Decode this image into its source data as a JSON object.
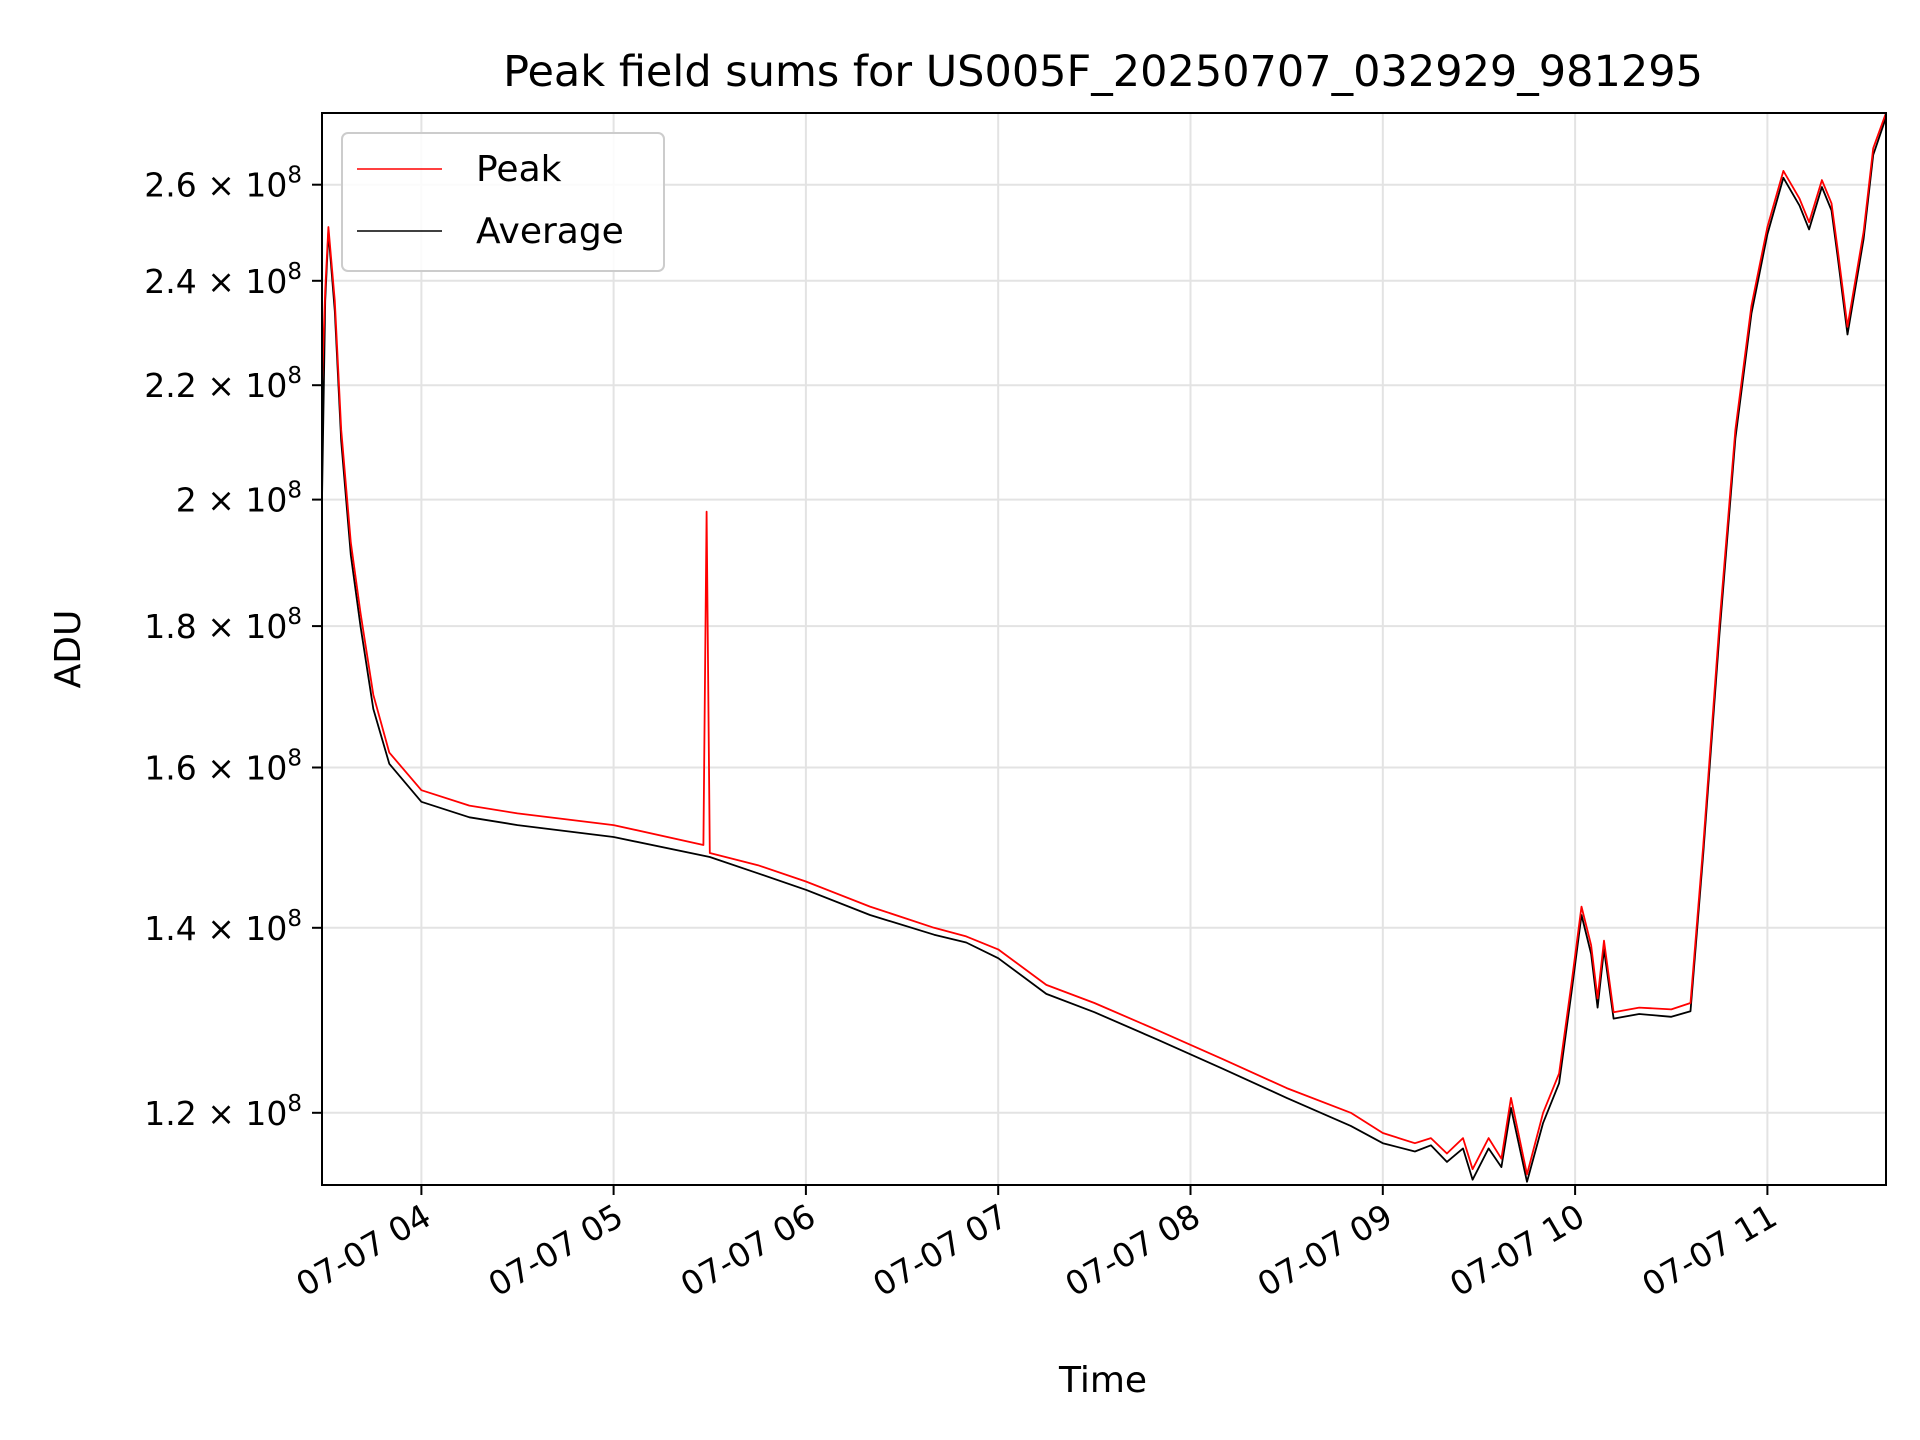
{
  "chart_data": {
    "type": "line",
    "title": "Peak field sums for US005F_20250707_032929_981295",
    "xlabel": "Time",
    "ylabel": "ADU",
    "y_scale": "log",
    "grid": true,
    "legend_position": "top-left",
    "xlim": [
      "2025-07-07 03:29",
      "2025-07-07 11:37"
    ],
    "ylim": [
      113000000,
      276000000
    ],
    "x_ticks": [
      {
        "value": "2025-07-07 04:00",
        "label": "07-07 04"
      },
      {
        "value": "2025-07-07 05:00",
        "label": "07-07 05"
      },
      {
        "value": "2025-07-07 06:00",
        "label": "07-07 06"
      },
      {
        "value": "2025-07-07 07:00",
        "label": "07-07 07"
      },
      {
        "value": "2025-07-07 08:00",
        "label": "07-07 08"
      },
      {
        "value": "2025-07-07 09:00",
        "label": "07-07 09"
      },
      {
        "value": "2025-07-07 10:00",
        "label": "07-07 10"
      },
      {
        "value": "2025-07-07 11:00",
        "label": "07-07 11"
      }
    ],
    "y_ticks": [
      {
        "value": 120000000,
        "mantissa": "1.2",
        "base": "10",
        "exp": "8"
      },
      {
        "value": 140000000,
        "mantissa": "1.4",
        "base": "10",
        "exp": "8"
      },
      {
        "value": 160000000,
        "mantissa": "1.6",
        "base": "10",
        "exp": "8"
      },
      {
        "value": 180000000,
        "mantissa": "1.8",
        "base": "10",
        "exp": "8"
      },
      {
        "value": 200000000,
        "mantissa": "2",
        "base": "10",
        "exp": "8"
      },
      {
        "value": 220000000,
        "mantissa": "2.2",
        "base": "10",
        "exp": "8"
      },
      {
        "value": 240000000,
        "mantissa": "2.4",
        "base": "10",
        "exp": "8"
      },
      {
        "value": 260000000,
        "mantissa": "2.6",
        "base": "10",
        "exp": "8"
      }
    ],
    "series": [
      {
        "name": "Peak",
        "color": "#ff0000",
        "x": [
          "2025-07-07 03:29",
          "2025-07-07 03:30",
          "2025-07-07 03:31",
          "2025-07-07 03:33",
          "2025-07-07 03:35",
          "2025-07-07 03:38",
          "2025-07-07 03:41",
          "2025-07-07 03:45",
          "2025-07-07 03:50",
          "2025-07-07 04:00",
          "2025-07-07 04:15",
          "2025-07-07 04:30",
          "2025-07-07 05:00",
          "2025-07-07 05:28",
          "2025-07-07 05:29",
          "2025-07-07 05:30",
          "2025-07-07 05:45",
          "2025-07-07 06:00",
          "2025-07-07 06:20",
          "2025-07-07 06:40",
          "2025-07-07 06:50",
          "2025-07-07 07:00",
          "2025-07-07 07:15",
          "2025-07-07 07:30",
          "2025-07-07 07:50",
          "2025-07-07 08:10",
          "2025-07-07 08:30",
          "2025-07-07 08:50",
          "2025-07-07 09:00",
          "2025-07-07 09:10",
          "2025-07-07 09:15",
          "2025-07-07 09:20",
          "2025-07-07 09:25",
          "2025-07-07 09:28",
          "2025-07-07 09:33",
          "2025-07-07 09:37",
          "2025-07-07 09:40",
          "2025-07-07 09:45",
          "2025-07-07 09:50",
          "2025-07-07 09:55",
          "2025-07-07 09:59",
          "2025-07-07 10:02",
          "2025-07-07 10:05",
          "2025-07-07 10:07",
          "2025-07-07 10:09",
          "2025-07-07 10:12",
          "2025-07-07 10:20",
          "2025-07-07 10:30",
          "2025-07-07 10:36",
          "2025-07-07 10:40",
          "2025-07-07 10:45",
          "2025-07-07 10:50",
          "2025-07-07 10:55",
          "2025-07-07 11:00",
          "2025-07-07 11:05",
          "2025-07-07 11:10",
          "2025-07-07 11:13",
          "2025-07-07 11:17",
          "2025-07-07 11:20",
          "2025-07-07 11:22",
          "2025-07-07 11:25",
          "2025-07-07 11:30",
          "2025-07-07 11:33",
          "2025-07-07 11:37"
        ],
        "values": [
          220000000,
          238000000,
          251000000,
          236000000,
          212000000,
          193000000,
          182000000,
          170000000,
          162000000,
          157000000,
          155000000,
          154000000,
          152500000,
          150000000,
          198000000,
          149000000,
          147500000,
          145500000,
          142500000,
          140000000,
          139000000,
          137500000,
          133500000,
          131500000,
          128500000,
          125500000,
          122500000,
          120000000,
          118000000,
          117000000,
          117500000,
          116000000,
          117500000,
          114500000,
          117500000,
          115500000,
          121500000,
          114000000,
          120000000,
          124000000,
          134000000,
          142500000,
          138000000,
          132000000,
          138500000,
          130500000,
          131000000,
          130800000,
          131500000,
          150000000,
          180000000,
          212000000,
          235000000,
          251000000,
          263000000,
          257000000,
          252000000,
          261000000,
          256000000,
          246000000,
          231000000,
          250000000,
          268000000,
          276000000
        ]
      },
      {
        "name": "Average",
        "color": "#000000",
        "x": [
          "2025-07-07 03:29",
          "2025-07-07 03:30",
          "2025-07-07 03:31",
          "2025-07-07 03:33",
          "2025-07-07 03:35",
          "2025-07-07 03:38",
          "2025-07-07 03:41",
          "2025-07-07 03:45",
          "2025-07-07 03:50",
          "2025-07-07 04:00",
          "2025-07-07 04:15",
          "2025-07-07 04:30",
          "2025-07-07 05:00",
          "2025-07-07 05:30",
          "2025-07-07 05:45",
          "2025-07-07 06:00",
          "2025-07-07 06:20",
          "2025-07-07 06:40",
          "2025-07-07 06:50",
          "2025-07-07 07:00",
          "2025-07-07 07:15",
          "2025-07-07 07:30",
          "2025-07-07 07:50",
          "2025-07-07 08:10",
          "2025-07-07 08:30",
          "2025-07-07 08:50",
          "2025-07-07 09:00",
          "2025-07-07 09:10",
          "2025-07-07 09:15",
          "2025-07-07 09:20",
          "2025-07-07 09:25",
          "2025-07-07 09:28",
          "2025-07-07 09:33",
          "2025-07-07 09:37",
          "2025-07-07 09:40",
          "2025-07-07 09:45",
          "2025-07-07 09:50",
          "2025-07-07 09:55",
          "2025-07-07 09:59",
          "2025-07-07 10:02",
          "2025-07-07 10:05",
          "2025-07-07 10:07",
          "2025-07-07 10:09",
          "2025-07-07 10:12",
          "2025-07-07 10:20",
          "2025-07-07 10:30",
          "2025-07-07 10:36",
          "2025-07-07 10:40",
          "2025-07-07 10:45",
          "2025-07-07 10:50",
          "2025-07-07 10:55",
          "2025-07-07 11:00",
          "2025-07-07 11:05",
          "2025-07-07 11:10",
          "2025-07-07 11:13",
          "2025-07-07 11:17",
          "2025-07-07 11:20",
          "2025-07-07 11:22",
          "2025-07-07 11:25",
          "2025-07-07 11:30",
          "2025-07-07 11:33",
          "2025-07-07 11:37"
        ],
        "values": [
          200000000,
          236000000,
          250000000,
          234000000,
          210000000,
          191000000,
          180000000,
          168000000,
          160500000,
          155500000,
          153500000,
          152500000,
          151000000,
          148500000,
          146500000,
          144500000,
          141500000,
          139200000,
          138300000,
          136500000,
          132500000,
          130500000,
          127500000,
          124500000,
          121500000,
          118700000,
          117000000,
          116200000,
          116800000,
          115200000,
          116500000,
          113500000,
          116500000,
          114700000,
          120500000,
          113300000,
          119000000,
          123000000,
          133000000,
          141500000,
          137000000,
          131000000,
          137500000,
          129800000,
          130300000,
          130000000,
          130600000,
          149000000,
          178500000,
          210500000,
          233500000,
          249500000,
          261500000,
          255500000,
          250500000,
          259500000,
          254500000,
          244500000,
          229500000,
          248500000,
          266500000,
          275000000
        ]
      }
    ]
  }
}
